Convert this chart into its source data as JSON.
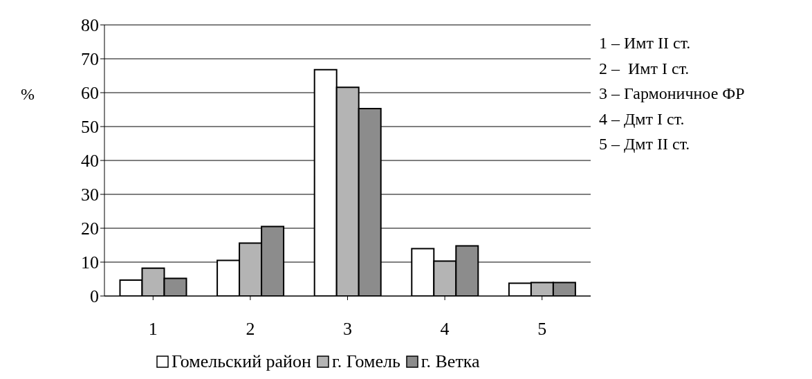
{
  "chart_data": {
    "type": "bar",
    "ylabel": "%",
    "categories": [
      "1",
      "2",
      "3",
      "4",
      "5"
    ],
    "series": [
      {
        "name": "Гомельский район",
        "color": "#ffffff",
        "values": [
          4.7,
          10.5,
          66.8,
          14.0,
          3.8
        ]
      },
      {
        "name": "г. Гомель",
        "color": "#b4b4b4",
        "values": [
          8.2,
          15.6,
          61.6,
          10.3,
          4.0
        ]
      },
      {
        "name": "г. Ветка",
        "color": "#8c8c8c",
        "values": [
          5.2,
          20.5,
          55.3,
          14.8,
          4.0
        ]
      }
    ],
    "ylim": [
      0,
      80
    ],
    "yticks": [
      0,
      10,
      20,
      30,
      40,
      50,
      60,
      70,
      80
    ],
    "grid": "y",
    "legend": "bottom",
    "annotations": [
      "1 – Имт II ст.",
      "2 –  Имт I ст.",
      "3 – Гармоничное ФР",
      "4 – Дмт I ст.",
      "5 – Дмт II ст."
    ]
  }
}
